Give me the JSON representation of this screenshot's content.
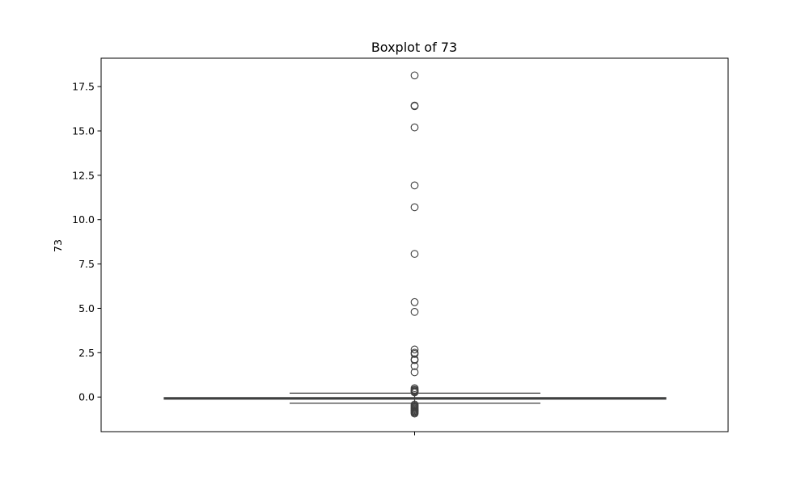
{
  "chart_data": {
    "type": "box",
    "title": "Boxplot of 73",
    "xlabel": "",
    "ylabel": "73",
    "ylim": [
      -1.95,
      19.1
    ],
    "yticks": [
      "0.0",
      "2.5",
      "5.0",
      "7.5",
      "10.0",
      "12.5",
      "15.0",
      "17.5"
    ],
    "ytick_values": [
      0.0,
      2.5,
      5.0,
      7.5,
      10.0,
      12.5,
      15.0,
      17.5
    ],
    "grid": false,
    "box": {
      "q1": -0.12,
      "median": -0.08,
      "q3": -0.03,
      "whisker_low": -0.35,
      "whisker_high": 0.22,
      "fill_color": "#3d6a8a",
      "edge_color": "#3f3f3f"
    },
    "outliers": [
      18.13,
      16.43,
      16.4,
      15.2,
      11.93,
      10.7,
      8.07,
      5.35,
      4.8,
      2.68,
      2.5,
      2.43,
      2.13,
      2.08,
      1.75,
      1.4,
      0.5,
      0.42,
      0.38,
      0.33,
      0.3,
      0.26,
      -0.42,
      -0.48,
      -0.53,
      -0.58,
      -0.63,
      -0.68,
      -0.73,
      -0.78,
      -0.83,
      -0.88,
      -0.93
    ]
  }
}
